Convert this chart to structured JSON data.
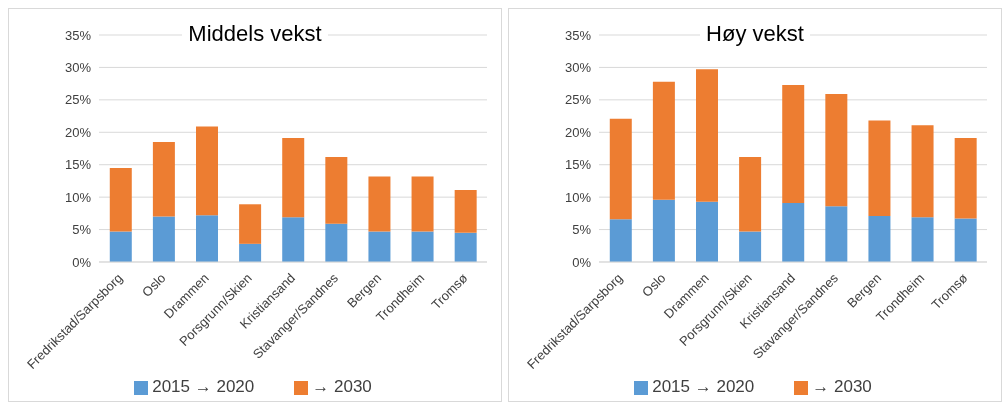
{
  "chart_data": [
    {
      "type": "bar",
      "title": "Middels vekst",
      "categories": [
        "Fredrikstad/Sarpsborg",
        "Oslo",
        "Drammen",
        "Porsgrunn/Skien",
        "Kristiansand",
        "Stavanger/Sandnes",
        "Bergen",
        "Trondheim",
        "Tromsø"
      ],
      "stacked": true,
      "series": [
        {
          "name": "2015 → 2020",
          "color": "#5b9bd5",
          "values": [
            4.7,
            7.0,
            7.2,
            2.8,
            6.9,
            5.9,
            4.7,
            4.7,
            4.5
          ]
        },
        {
          "name": "→ 2030",
          "color": "#ed7d31",
          "values": [
            9.8,
            11.5,
            13.7,
            6.1,
            12.2,
            10.3,
            8.5,
            8.5,
            6.6
          ]
        }
      ],
      "ylim": [
        0,
        35
      ],
      "yticks": [
        {
          "value": 0,
          "label": "0%"
        },
        {
          "value": 5,
          "label": "5%"
        },
        {
          "value": 10,
          "label": "10%"
        },
        {
          "value": 15,
          "label": "15%"
        },
        {
          "value": 20,
          "label": "20%"
        },
        {
          "value": 25,
          "label": "25%"
        },
        {
          "value": 30,
          "label": "30%"
        },
        {
          "value": 35,
          "label": "35%"
        }
      ],
      "grid": "y",
      "legend": "bottom"
    },
    {
      "type": "bar",
      "title": "Høy vekst",
      "categories": [
        "Fredrikstad/Sarpsborg",
        "Oslo",
        "Drammen",
        "Porsgrunn/Skien",
        "Kristiansand",
        "Stavanger/Sandnes",
        "Bergen",
        "Trondheim",
        "Tromsø"
      ],
      "stacked": true,
      "series": [
        {
          "name": "2015 → 2020",
          "color": "#5b9bd5",
          "values": [
            6.6,
            9.6,
            9.3,
            4.7,
            9.1,
            8.6,
            7.1,
            6.9,
            6.7
          ]
        },
        {
          "name": "→ 2030",
          "color": "#ed7d31",
          "values": [
            15.5,
            18.2,
            20.4,
            11.5,
            18.2,
            17.3,
            14.7,
            14.2,
            12.4
          ]
        }
      ],
      "ylim": [
        0,
        35
      ],
      "yticks": [
        {
          "value": 0,
          "label": "0%"
        },
        {
          "value": 5,
          "label": "5%"
        },
        {
          "value": 10,
          "label": "10%"
        },
        {
          "value": 15,
          "label": "15%"
        },
        {
          "value": 20,
          "label": "20%"
        },
        {
          "value": 25,
          "label": "25%"
        },
        {
          "value": 30,
          "label": "30%"
        },
        {
          "value": 35,
          "label": "35%"
        }
      ],
      "grid": "y",
      "legend": "bottom"
    }
  ]
}
